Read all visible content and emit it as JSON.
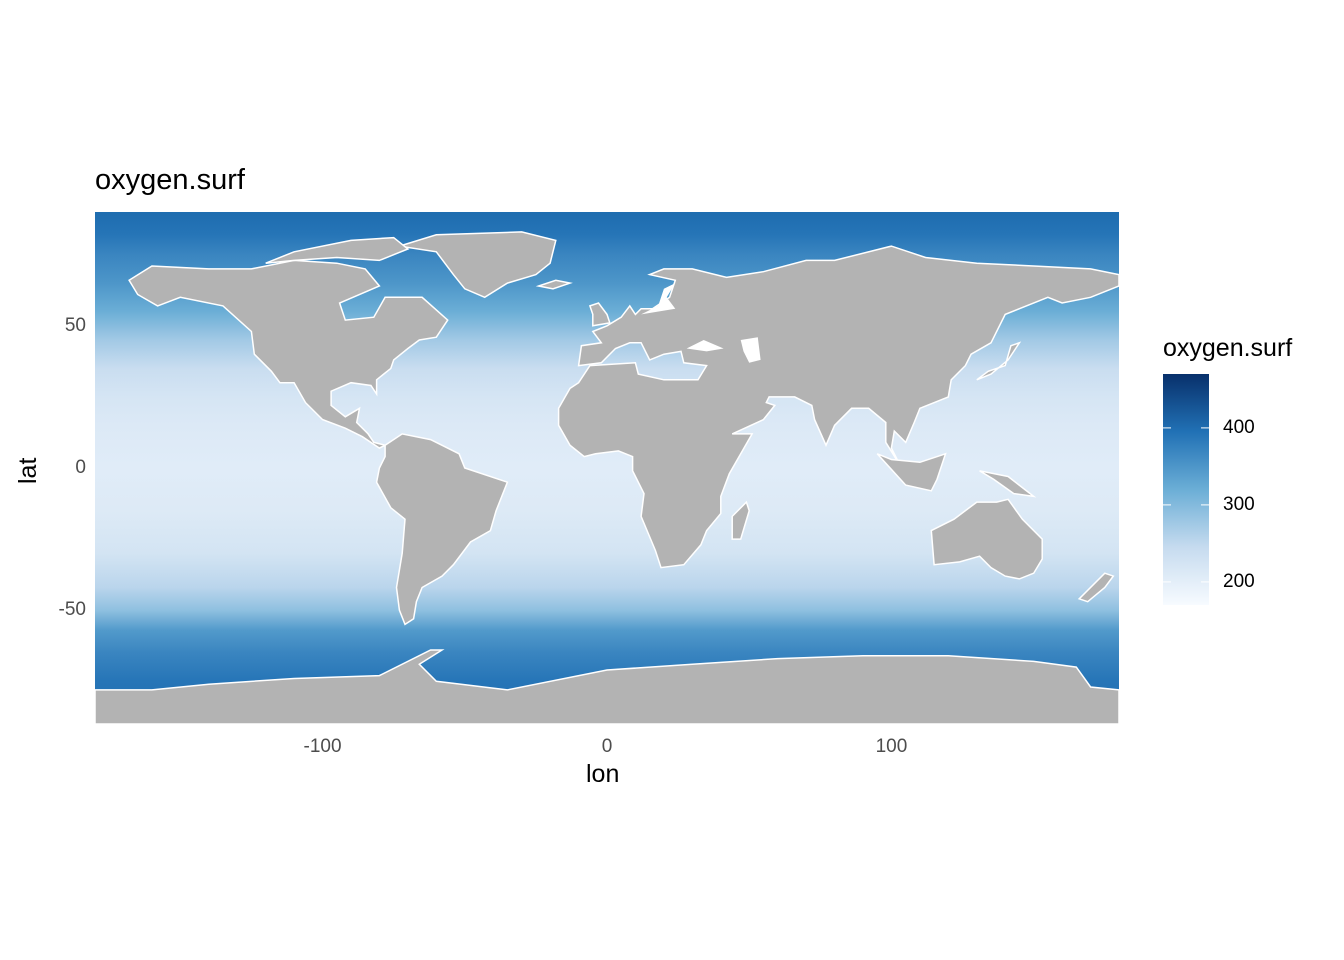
{
  "chart_data": {
    "type": "heatmap",
    "title": "oxygen.surf",
    "xlabel": "lon",
    "ylabel": "lat",
    "xlim": [
      -180,
      180
    ],
    "ylim": [
      -90,
      90
    ],
    "x_ticks": [
      -100,
      0,
      100
    ],
    "y_ticks": [
      -50,
      0,
      50
    ],
    "grid": false,
    "legend": {
      "title": "oxygen.surf",
      "position": "right",
      "range": [
        170,
        470
      ],
      "ticks": [
        200,
        300,
        400
      ],
      "colors": [
        "#f7fbff",
        "#c6dbef",
        "#6baed6",
        "#2171b5",
        "#08306b"
      ]
    },
    "land_color": "#b3b3b3",
    "no_data_color": "#ffffff",
    "z_by_latitude": [
      {
        "lat": -89,
        "z": 400
      },
      {
        "lat": -75,
        "z": 390
      },
      {
        "lat": -65,
        "z": 370
      },
      {
        "lat": -57,
        "z": 345
      },
      {
        "lat": -50,
        "z": 290
      },
      {
        "lat": -42,
        "z": 255
      },
      {
        "lat": -30,
        "z": 225
      },
      {
        "lat": -15,
        "z": 210
      },
      {
        "lat": 0,
        "z": 205
      },
      {
        "lat": 15,
        "z": 212
      },
      {
        "lat": 25,
        "z": 222
      },
      {
        "lat": 35,
        "z": 240
      },
      {
        "lat": 45,
        "z": 275
      },
      {
        "lat": 55,
        "z": 320
      },
      {
        "lat": 65,
        "z": 350
      },
      {
        "lat": 75,
        "z": 370
      },
      {
        "lat": 82,
        "z": 390
      },
      {
        "lat": 89,
        "z": 400
      }
    ]
  }
}
